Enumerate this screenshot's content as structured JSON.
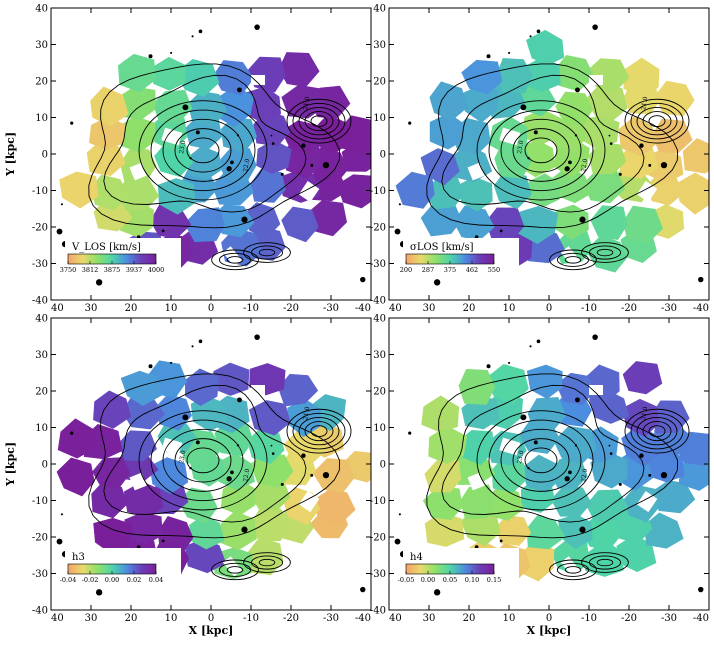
{
  "chart_data": [
    {
      "type": "heatmap",
      "panel": "top-left",
      "quantity": "V_LOS",
      "colorbar": {
        "label": "V_LOS [km/s]",
        "ticks": [
          "3750",
          "3812",
          "3875",
          "3937",
          "4000"
        ],
        "range": [
          3750,
          4000
        ]
      },
      "xlabel": "",
      "ylabel": "Y [kpc]",
      "xlim": [
        40,
        -40
      ],
      "ylim": [
        -40,
        40
      ],
      "xticks": [
        "40",
        "30",
        "20",
        "10",
        "0",
        "-10",
        "-20",
        "-30",
        "-40"
      ],
      "yticks": [
        "40",
        "30",
        "20",
        "10",
        "0",
        "-10",
        "-20",
        "-30",
        "-40"
      ],
      "contour_labels": [
        "23.0",
        "22.0",
        "21.0"
      ],
      "regions": [
        {
          "x": 30,
          "y": 10,
          "v": 3760
        },
        {
          "x": 33,
          "y": -2,
          "v": 3780
        },
        {
          "x": 20,
          "y": 12,
          "v": 3840
        },
        {
          "x": 22,
          "y": -12,
          "v": 3820
        },
        {
          "x": 15,
          "y": 25,
          "v": 3860
        },
        {
          "x": 5,
          "y": 25,
          "v": 3880
        },
        {
          "x": 0,
          "y": 5,
          "v": 3900
        },
        {
          "x": -5,
          "y": -15,
          "v": 3910
        },
        {
          "x": -15,
          "y": 22,
          "v": 3960
        },
        {
          "x": -25,
          "y": 20,
          "v": 3990
        },
        {
          "x": -30,
          "y": 5,
          "v": 4000
        },
        {
          "x": -32,
          "y": -10,
          "v": 3995
        },
        {
          "x": -15,
          "y": -20,
          "v": 3940
        },
        {
          "x": 10,
          "y": -25,
          "v": 3990
        },
        {
          "x": 25,
          "y": -20,
          "v": 3800
        }
      ]
    },
    {
      "type": "heatmap",
      "panel": "top-right",
      "quantity": "sigma_LOS",
      "colorbar": {
        "label": "σLOS [km/s]",
        "ticks": [
          "200",
          "287",
          "375",
          "462",
          "550"
        ],
        "range": [
          200,
          550
        ]
      },
      "xlabel": "",
      "ylabel": "",
      "xlim": [
        40,
        -40
      ],
      "ylim": [
        -40,
        40
      ],
      "xticks": [
        "40",
        "30",
        "20",
        "10",
        "0",
        "-10",
        "-20",
        "-30",
        "-40"
      ],
      "yticks": [
        "40",
        "30",
        "20",
        "10",
        "0",
        "-10",
        "-20",
        "-30",
        "-40"
      ],
      "contour_labels": [
        "23.0",
        "22.0",
        "21.0"
      ],
      "regions": [
        {
          "x": 30,
          "y": 10,
          "v": 420
        },
        {
          "x": 33,
          "y": -2,
          "v": 470
        },
        {
          "x": 20,
          "y": 12,
          "v": 410
        },
        {
          "x": 22,
          "y": -12,
          "v": 390
        },
        {
          "x": 15,
          "y": 25,
          "v": 430
        },
        {
          "x": 5,
          "y": 25,
          "v": 380
        },
        {
          "x": 0,
          "y": 5,
          "v": 310
        },
        {
          "x": -5,
          "y": -15,
          "v": 330
        },
        {
          "x": -15,
          "y": 22,
          "v": 300
        },
        {
          "x": -25,
          "y": 20,
          "v": 260
        },
        {
          "x": -30,
          "y": 5,
          "v": 230
        },
        {
          "x": -32,
          "y": -10,
          "v": 250
        },
        {
          "x": -15,
          "y": -20,
          "v": 360
        },
        {
          "x": 10,
          "y": -25,
          "v": 500
        },
        {
          "x": 25,
          "y": -20,
          "v": 420
        }
      ]
    },
    {
      "type": "heatmap",
      "panel": "bottom-left",
      "quantity": "h3",
      "colorbar": {
        "label": "h3",
        "ticks": [
          "-0.04",
          "-0.02",
          "0.00",
          "0.02",
          "0.04"
        ],
        "range": [
          -0.04,
          0.04
        ]
      },
      "xlabel": "X [kpc]",
      "ylabel": "Y [kpc]",
      "xlim": [
        40,
        -40
      ],
      "ylim": [
        -40,
        40
      ],
      "xticks": [
        "40",
        "30",
        "20",
        "10",
        "0",
        "-10",
        "-20",
        "-30",
        "-40"
      ],
      "yticks": [
        "40",
        "30",
        "20",
        "10",
        "0",
        "-10",
        "-20",
        "-30",
        "-40"
      ],
      "contour_labels": [
        "23.0",
        "22.0",
        "21.0"
      ],
      "regions": [
        {
          "x": 30,
          "y": 10,
          "v": 0.04
        },
        {
          "x": 33,
          "y": -2,
          "v": 0.04
        },
        {
          "x": 20,
          "y": 12,
          "v": 0.02
        },
        {
          "x": 22,
          "y": -12,
          "v": 0.035
        },
        {
          "x": 15,
          "y": 25,
          "v": 0.01
        },
        {
          "x": 5,
          "y": 25,
          "v": 0.02
        },
        {
          "x": 0,
          "y": 5,
          "v": -0.005
        },
        {
          "x": -5,
          "y": -15,
          "v": -0.015
        },
        {
          "x": -15,
          "y": 22,
          "v": 0.03
        },
        {
          "x": -25,
          "y": 20,
          "v": 0.02
        },
        {
          "x": -30,
          "y": 5,
          "v": -0.03
        },
        {
          "x": -32,
          "y": -10,
          "v": -0.035
        },
        {
          "x": -15,
          "y": -20,
          "v": -0.02
        },
        {
          "x": 10,
          "y": -25,
          "v": 0.04
        },
        {
          "x": 25,
          "y": -20,
          "v": 0.04
        }
      ]
    },
    {
      "type": "heatmap",
      "panel": "bottom-right",
      "quantity": "h4",
      "colorbar": {
        "label": "h4",
        "ticks": [
          "-0.05",
          "0.00",
          "0.05",
          "0.10",
          "0.15"
        ],
        "range": [
          -0.05,
          0.15
        ]
      },
      "xlabel": "X [kpc]",
      "ylabel": "",
      "xlim": [
        40,
        -40
      ],
      "ylim": [
        -40,
        40
      ],
      "xticks": [
        "40",
        "30",
        "20",
        "10",
        "0",
        "-10",
        "-20",
        "-30",
        "-40"
      ],
      "yticks": [
        "40",
        "30",
        "20",
        "10",
        "0",
        "-10",
        "-20",
        "-30",
        "-40"
      ],
      "contour_labels": [
        "23.0",
        "22.0",
        "21.0"
      ],
      "regions": [
        {
          "x": 30,
          "y": 10,
          "v": 0.0
        },
        {
          "x": 33,
          "y": -2,
          "v": -0.02
        },
        {
          "x": 20,
          "y": 12,
          "v": 0.06
        },
        {
          "x": 22,
          "y": -12,
          "v": 0.02
        },
        {
          "x": 15,
          "y": 25,
          "v": 0.02
        },
        {
          "x": 5,
          "y": 25,
          "v": 0.08
        },
        {
          "x": 0,
          "y": 5,
          "v": 0.07
        },
        {
          "x": -5,
          "y": -15,
          "v": 0.06
        },
        {
          "x": -15,
          "y": 22,
          "v": 0.1
        },
        {
          "x": -25,
          "y": 20,
          "v": 0.12
        },
        {
          "x": -30,
          "y": 5,
          "v": 0.09
        },
        {
          "x": -32,
          "y": -10,
          "v": 0.07
        },
        {
          "x": -15,
          "y": -20,
          "v": 0.05
        },
        {
          "x": 10,
          "y": -25,
          "v": -0.03
        },
        {
          "x": 25,
          "y": -20,
          "v": -0.01
        }
      ]
    }
  ],
  "colors": {
    "colormap": [
      "#f2a36b",
      "#e9d96b",
      "#8fe06a",
      "#4fd4a8",
      "#4a8fe0",
      "#6a3fb8",
      "#7a1f9a"
    ],
    "contour": "#000000",
    "background": "#ffffff"
  }
}
